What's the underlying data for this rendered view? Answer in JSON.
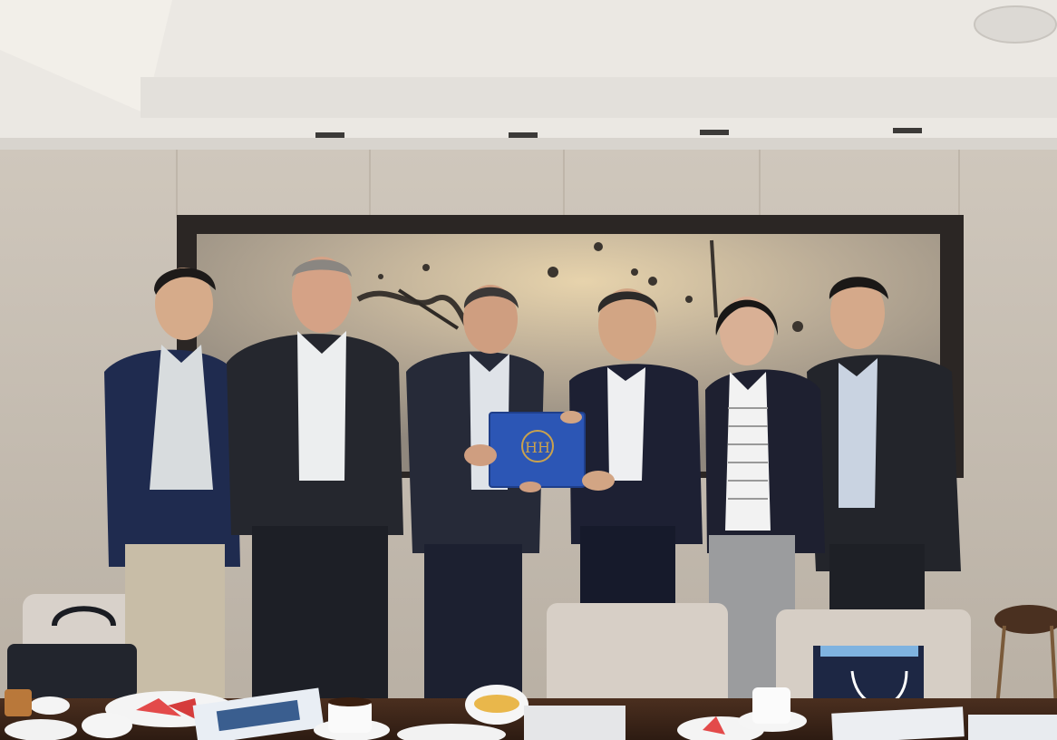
{
  "scene": {
    "title": "",
    "description": ""
  },
  "folder": {
    "emblem_text": "HH"
  },
  "colors": {
    "ceiling": "#ece9e4",
    "wall": "#d8cfc2",
    "wall_shadow": "#c8bfb2",
    "frame": "#2b2624",
    "artwork": "#a99f92",
    "artwork_light": "#d8c4a2",
    "suit_dark": "#24262f",
    "suit_navy": "#1e2c4f",
    "shirt_white": "#e9ebee",
    "skin": "#d5a886",
    "folder_blue": "#2c56b5",
    "gold": "#c9a24e",
    "table": "#3a2418",
    "chair": "#d6cfc7"
  }
}
